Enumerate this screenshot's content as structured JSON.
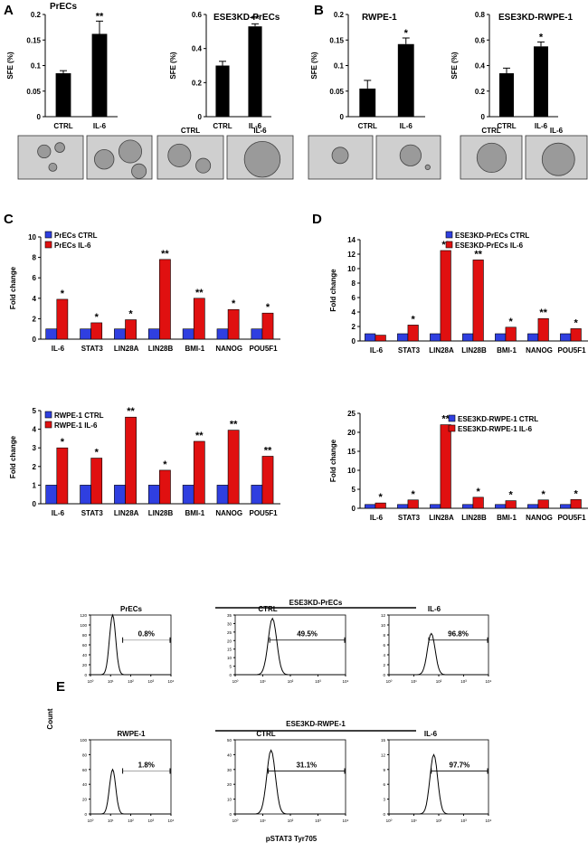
{
  "panels": {
    "A": "A",
    "B": "B",
    "C": "C",
    "D": "D",
    "E": "E"
  },
  "chart_data": [
    {
      "id": "A1",
      "type": "bar",
      "title": "PrECs",
      "ylabel": "SFE (%)",
      "categories": [
        "CTRL",
        "IL-6"
      ],
      "values": [
        0.085,
        0.162
      ],
      "errors": [
        0.005,
        0.025
      ],
      "sig": [
        "",
        "**"
      ],
      "ylim": [
        0,
        0.2
      ],
      "yticks": [
        0,
        0.05,
        0.1,
        0.15,
        0.2
      ],
      "yticklabels": [
        "0",
        "0.05",
        "0.1",
        "0.15",
        "0.2"
      ]
    },
    {
      "id": "A2",
      "type": "bar",
      "title": "ESE3KD-PrECs",
      "ylabel": "SFE (%)",
      "categories": [
        "CTRL",
        "IL-6"
      ],
      "values": [
        0.3,
        0.53
      ],
      "errors": [
        0.025,
        0.015
      ],
      "sig": [
        "",
        "**"
      ],
      "ylim": [
        0,
        0.6
      ],
      "yticks": [
        0,
        0.2,
        0.4,
        0.6
      ],
      "yticklabels": [
        "0",
        "0.2",
        "0.4",
        "0.6"
      ]
    },
    {
      "id": "B1",
      "type": "bar",
      "title": "RWPE-1",
      "ylabel": "SFE (%)",
      "categories": [
        "CTRL",
        "IL-6"
      ],
      "values": [
        0.055,
        0.142
      ],
      "errors": [
        0.016,
        0.012
      ],
      "sig": [
        "",
        "*"
      ],
      "ylim": [
        0,
        0.2
      ],
      "yticks": [
        0,
        0.05,
        0.1,
        0.15,
        0.2
      ],
      "yticklabels": [
        "0",
        "0.05",
        "0.1",
        "0.15",
        "0.2"
      ]
    },
    {
      "id": "B2",
      "type": "bar",
      "title": "ESE3KD-RWPE-1",
      "ylabel": "SFE (%)",
      "categories": [
        "CTRL",
        "IL-6"
      ],
      "values": [
        0.34,
        0.55
      ],
      "errors": [
        0.04,
        0.035
      ],
      "sig": [
        "",
        "*"
      ],
      "ylim": [
        0,
        0.8
      ],
      "yticks": [
        0,
        0.2,
        0.4,
        0.6,
        0.8
      ],
      "yticklabels": [
        "0",
        "0.2",
        "0.4",
        "0.6",
        "0.8"
      ]
    },
    {
      "id": "C1",
      "type": "bar",
      "ylabel": "Fold change",
      "categories": [
        "IL-6",
        "STAT3",
        "LIN28A",
        "LIN28B",
        "BMI-1",
        "NANOG",
        "POU5F1"
      ],
      "series": [
        {
          "name": "PrECs CTRL",
          "values": [
            1,
            1,
            1,
            1,
            1,
            1,
            1
          ]
        },
        {
          "name": "PrECs IL-6",
          "values": [
            3.9,
            1.6,
            1.9,
            7.8,
            4.0,
            2.9,
            2.55
          ]
        }
      ],
      "sig": [
        "*",
        "*",
        "*",
        "**",
        "**",
        "*",
        "*"
      ],
      "ylim": [
        0,
        10
      ],
      "yticks": [
        0,
        2,
        4,
        6,
        8,
        10
      ],
      "yticklabels": [
        "0",
        "2",
        "4",
        "6",
        "8",
        "10"
      ]
    },
    {
      "id": "C2",
      "type": "bar",
      "ylabel": "Fold change",
      "categories": [
        "IL-6",
        "STAT3",
        "LIN28A",
        "LIN28B",
        "BMI-1",
        "NANOG",
        "POU5F1"
      ],
      "series": [
        {
          "name": "RWPE-1 CTRL",
          "values": [
            1,
            1,
            1,
            1,
            1,
            1,
            1
          ]
        },
        {
          "name": "RWPE-1 IL-6",
          "values": [
            3.0,
            2.45,
            4.65,
            1.8,
            3.35,
            3.95,
            2.55
          ]
        }
      ],
      "sig": [
        "*",
        "*",
        "**",
        "*",
        "**",
        "**",
        "**"
      ],
      "ylim": [
        0,
        5
      ],
      "yticks": [
        0,
        1,
        2,
        3,
        4,
        5
      ],
      "yticklabels": [
        "0",
        "1",
        "2",
        "3",
        "4",
        "5"
      ]
    },
    {
      "id": "D1",
      "type": "bar",
      "ylabel": "Fold change",
      "categories": [
        "IL-6",
        "STAT3",
        "LIN28A",
        "LIN28B",
        "BMI-1",
        "NANOG",
        "POU5F1"
      ],
      "series": [
        {
          "name": "ESE3KD-PrECs CTRL",
          "values": [
            1,
            1,
            1,
            1,
            1,
            1,
            1
          ]
        },
        {
          "name": "ESE3KD-PrECs IL-6",
          "values": [
            0.8,
            2.2,
            12.5,
            11.2,
            1.9,
            3.1,
            1.7
          ]
        }
      ],
      "sig": [
        "",
        "*",
        "**",
        "**",
        "*",
        "**",
        "*"
      ],
      "ylim": [
        0,
        14
      ],
      "yticks": [
        0,
        2,
        4,
        6,
        8,
        10,
        12,
        14
      ],
      "yticklabels": [
        "0",
        "2",
        "4",
        "6",
        "8",
        "10",
        "12",
        "14"
      ]
    },
    {
      "id": "D2",
      "type": "bar",
      "ylabel": "Fold change",
      "categories": [
        "IL-6",
        "STAT3",
        "LIN28A",
        "LIN28B",
        "BMI-1",
        "NANOG",
        "POU5F1"
      ],
      "series": [
        {
          "name": "ESE3KD-RWPE-1 CTRL",
          "values": [
            1,
            1,
            1,
            1,
            1,
            1,
            1
          ]
        },
        {
          "name": "ESE3KD-RWPE-1 IL-6",
          "values": [
            1.4,
            2.2,
            22,
            2.9,
            2.0,
            2.2,
            2.3
          ]
        }
      ],
      "sig": [
        "*",
        "*",
        "**",
        "*",
        "*",
        "*",
        "*"
      ],
      "ylim": [
        0,
        25
      ],
      "yticks": [
        0,
        5,
        10,
        15,
        20,
        25
      ],
      "yticklabels": [
        "0",
        "5",
        "10",
        "15",
        "20",
        "25"
      ]
    }
  ],
  "images": {
    "ctrl_label": "CTRL",
    "il6_label": "IL-6"
  },
  "flow": {
    "ylabel": "Count",
    "xlabel": "pSTAT3 Tyr705",
    "group_labels": [
      "ESE3KD-PrECs",
      "ESE3KD-RWPE-1"
    ],
    "xticklabels": [
      "10⁰",
      "10¹",
      "10²",
      "10³",
      "10⁴"
    ],
    "plots": [
      {
        "title": "PrECs",
        "pct": "0.8%",
        "yticks": [
          "0",
          "20",
          "40",
          "60",
          "80",
          "100",
          "120"
        ],
        "peak": 1.1,
        "ymax": 120,
        "peak_count": 120
      },
      {
        "title": "CTRL",
        "pct": "49.5%",
        "yticks": [
          "0",
          "5",
          "10",
          "15",
          "20",
          "25",
          "30",
          "35"
        ],
        "peak": 1.35,
        "ymax": 35,
        "peak_count": 33
      },
      {
        "title": "IL-6",
        "pct": "96.8%",
        "yticks": [
          "0",
          "2",
          "4",
          "6",
          "8",
          "10",
          "12"
        ],
        "peak": 1.7,
        "ymax": 12,
        "peak_count": 8.3
      },
      {
        "title": "RWPE-1",
        "pct": "1.8%",
        "yticks": [
          "0",
          "20",
          "40",
          "60",
          "80",
          "100"
        ],
        "peak": 1.1,
        "ymax": 100,
        "peak_count": 60
      },
      {
        "title": "CTRL",
        "pct": "31.1%",
        "yticks": [
          "0",
          "10",
          "20",
          "30",
          "40",
          "50"
        ],
        "peak": 1.3,
        "ymax": 50,
        "peak_count": 43
      },
      {
        "title": "IL-6",
        "pct": "97.7%",
        "yticks": [
          "0",
          "3",
          "6",
          "9",
          "12",
          "15"
        ],
        "peak": 1.8,
        "ymax": 15,
        "peak_count": 12
      }
    ]
  }
}
